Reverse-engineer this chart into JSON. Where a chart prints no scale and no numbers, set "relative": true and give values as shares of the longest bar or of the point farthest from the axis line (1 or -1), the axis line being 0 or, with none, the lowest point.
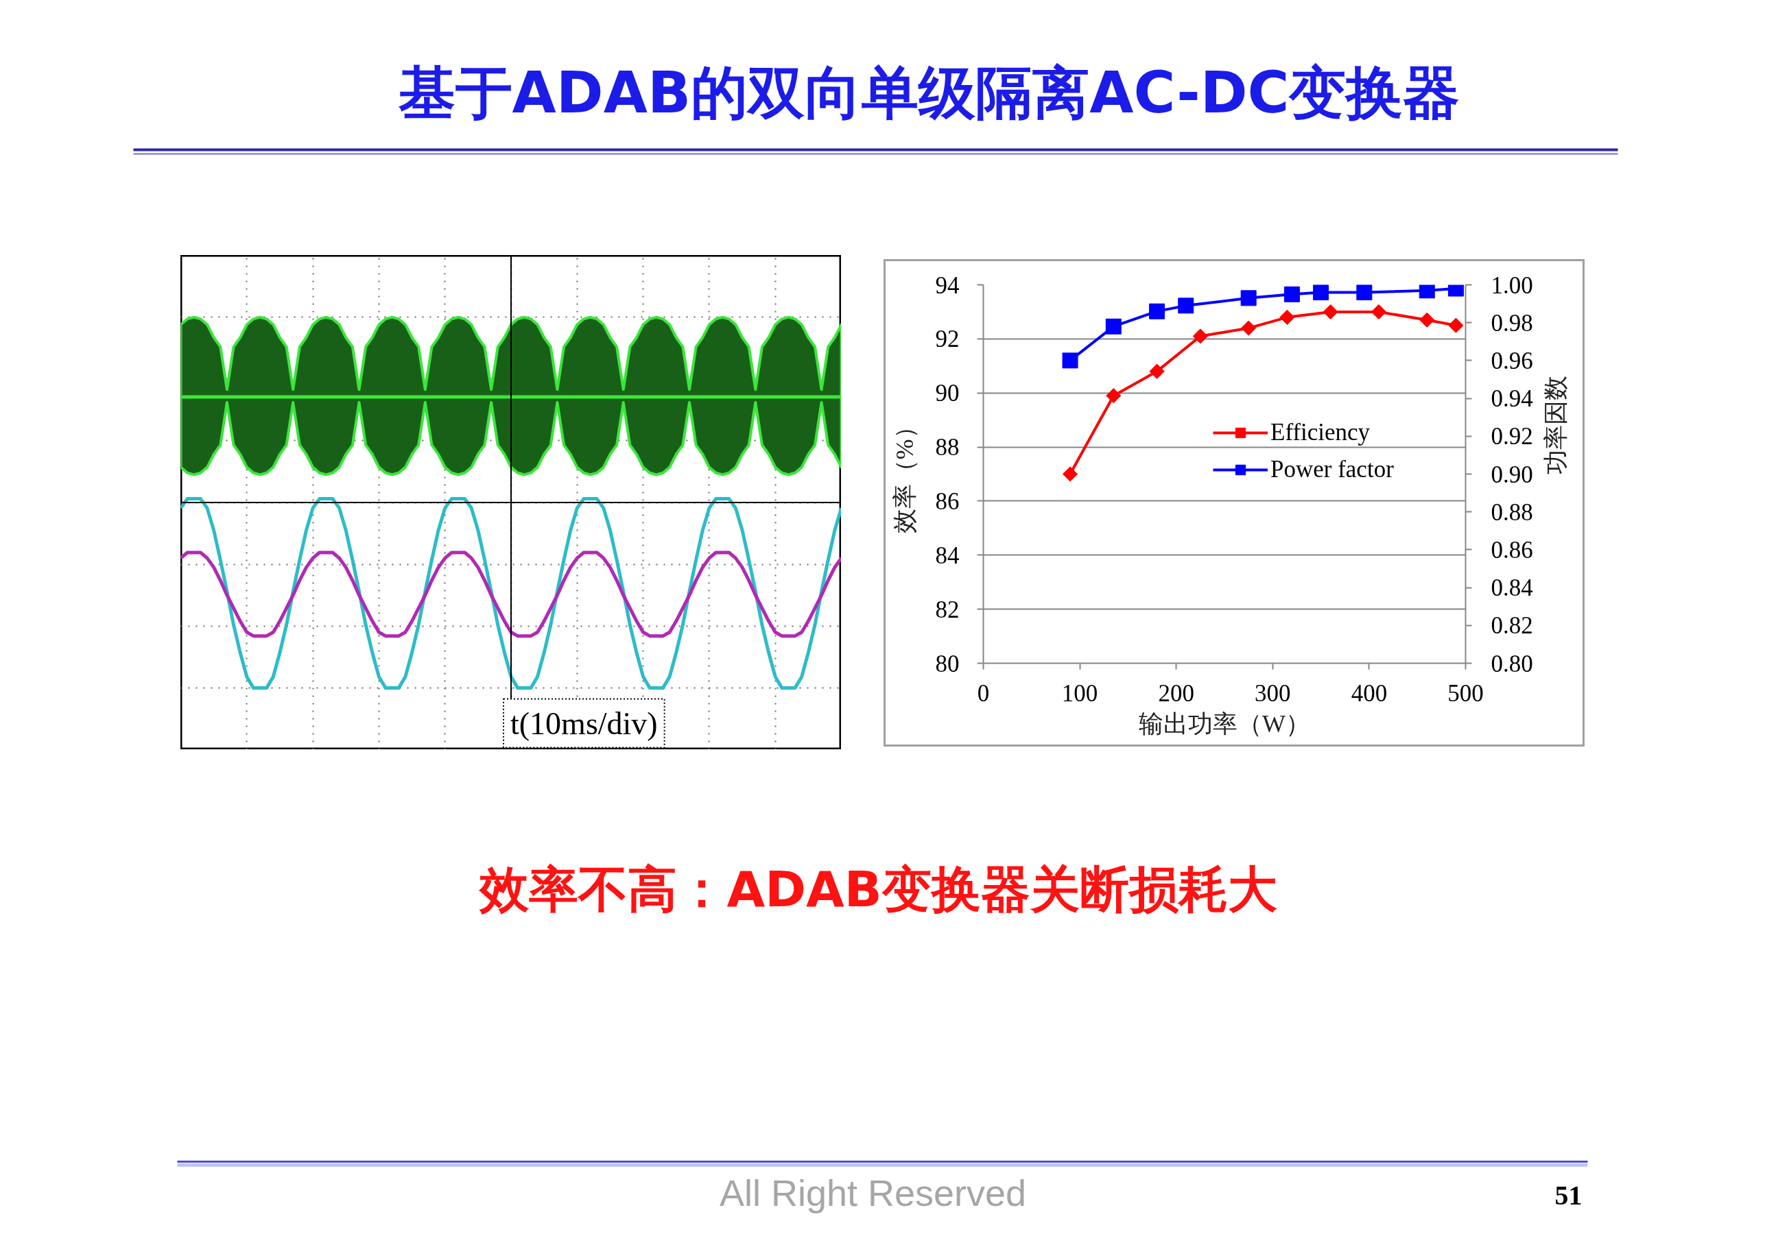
{
  "chart_data": [
    {
      "type": "line",
      "title": "基于ADAB的双向单级隔离AC-DC变换器",
      "relative": true,
      "xlabel": "t(10ms/div)",
      "grid": true,
      "categories": [
        null,
        null,
        null,
        null,
        null,
        null,
        null,
        null,
        null,
        null,
        null,
        null,
        null,
        null,
        null,
        null,
        null,
        null,
        null,
        null,
        null,
        null,
        null,
        null,
        null,
        null,
        null,
        null,
        null,
        null,
        null,
        null,
        null,
        null,
        null,
        null,
        null,
        null,
        null,
        null,
        null,
        null,
        null,
        null,
        null,
        null,
        null,
        null,
        null,
        null,
        null,
        null,
        null,
        null,
        null,
        null,
        null,
        null,
        null,
        null,
        null,
        null,
        null,
        null,
        null,
        null,
        null,
        null,
        null,
        null,
        null,
        null,
        null,
        null,
        null,
        null,
        null,
        null,
        null,
        null,
        null,
        null,
        null,
        null,
        null,
        null,
        null,
        null,
        null,
        null,
        null,
        null,
        null,
        null,
        null,
        null,
        null,
        null,
        null,
        null,
        null
      ],
      "series": [
        {
          "color": "#3ae63a",
          "values": [
            0.57,
            0.57,
            0.57,
            0.57,
            0.57,
            0.57,
            0.57,
            0.57,
            0.57,
            0.57,
            0.57,
            0.57,
            0.57,
            0.57,
            0.57,
            0.57,
            0.57,
            0.57,
            0.57,
            0.57,
            0.57,
            0.57,
            0.57,
            0.57,
            0.57,
            0.57,
            0.57,
            0.57,
            0.57,
            0.57,
            0.57,
            0.57,
            0.57,
            0.57,
            0.57,
            0.57,
            0.57,
            0.57,
            0.57,
            0.57,
            0.57,
            0.57,
            0.57,
            0.57,
            0.57,
            0.57,
            0.57,
            0.57,
            0.57,
            0.57,
            0.57,
            0.57,
            0.57,
            0.57,
            0.57,
            0.57,
            0.57,
            0.57,
            0.57,
            0.57,
            0.57,
            0.57,
            0.57,
            0.57,
            0.57,
            0.57,
            0.57,
            0.57,
            0.57,
            0.57,
            0.57,
            0.57,
            0.57,
            0.57,
            0.57,
            0.57,
            0.57,
            0.57,
            0.57,
            0.57,
            0.57,
            0.57,
            0.57,
            0.57,
            0.57,
            0.57,
            0.57,
            0.57,
            0.57,
            0.57,
            0.57,
            0.57,
            0.57,
            0.57,
            0.57,
            0.57,
            0.57,
            0.57,
            0.57,
            0.57,
            0.57
          ],
          "upper": [
            0.96,
            0.99,
            1.0,
            0.99,
            0.96,
            0.89,
            0.84,
            0.61,
            0.84,
            0.89,
            0.96,
            0.99,
            1.0,
            0.99,
            0.96,
            0.89,
            0.84,
            0.61,
            0.84,
            0.89,
            0.96,
            0.99,
            1.0,
            0.99,
            0.96,
            0.89,
            0.84,
            0.61,
            0.84,
            0.89,
            0.96,
            0.99,
            1.0,
            0.99,
            0.96,
            0.89,
            0.84,
            0.61,
            0.84,
            0.89,
            0.96,
            0.99,
            1.0,
            0.99,
            0.96,
            0.89,
            0.84,
            0.61,
            0.84,
            0.89,
            0.96,
            0.99,
            1.0,
            0.99,
            0.96,
            0.89,
            0.84,
            0.61,
            0.84,
            0.89,
            0.96,
            0.99,
            1.0,
            0.99,
            0.96,
            0.89,
            0.84,
            0.61,
            0.84,
            0.89,
            0.96,
            0.99,
            1.0,
            0.99,
            0.96,
            0.89,
            0.84,
            0.61,
            0.84,
            0.89,
            0.96,
            0.99,
            1.0,
            0.99,
            0.96,
            0.89,
            0.84,
            0.61,
            0.84,
            0.89,
            0.96,
            0.99,
            1.0,
            0.99,
            0.96,
            0.89,
            0.84,
            0.61,
            0.84,
            0.89,
            0.96
          ],
          "lower": [
            0.19,
            0.16,
            0.15,
            0.16,
            0.19,
            0.26,
            0.31,
            0.54,
            0.31,
            0.26,
            0.19,
            0.16,
            0.15,
            0.16,
            0.19,
            0.26,
            0.31,
            0.54,
            0.31,
            0.26,
            0.19,
            0.16,
            0.15,
            0.16,
            0.19,
            0.26,
            0.31,
            0.54,
            0.31,
            0.26,
            0.19,
            0.16,
            0.15,
            0.16,
            0.19,
            0.26,
            0.31,
            0.54,
            0.31,
            0.26,
            0.19,
            0.16,
            0.15,
            0.16,
            0.19,
            0.26,
            0.31,
            0.54,
            0.31,
            0.26,
            0.19,
            0.16,
            0.15,
            0.16,
            0.19,
            0.26,
            0.31,
            0.54,
            0.31,
            0.26,
            0.19,
            0.16,
            0.15,
            0.16,
            0.19,
            0.26,
            0.31,
            0.54,
            0.31,
            0.26,
            0.19,
            0.16,
            0.15,
            0.16,
            0.19,
            0.26,
            0.31,
            0.54,
            0.31,
            0.26,
            0.19,
            0.16,
            0.15,
            0.16,
            0.19,
            0.26,
            0.31,
            0.54,
            0.31,
            0.26,
            0.19,
            0.16,
            0.15,
            0.16,
            0.19,
            0.26,
            0.31,
            0.54,
            0.31,
            0.26,
            0.19
          ]
        },
        {
          "color": "#2cbcc8",
          "values": [
            -0.03,
            0.02,
            0.02,
            0.02,
            -0.03,
            -0.15,
            -0.31,
            -0.48,
            -0.66,
            -0.81,
            -0.94,
            -1.0,
            -1.0,
            -1.0,
            -0.94,
            -0.81,
            -0.66,
            -0.48,
            -0.31,
            -0.15,
            -0.03,
            0.02,
            0.02,
            0.02,
            -0.03,
            -0.15,
            -0.31,
            -0.48,
            -0.66,
            -0.81,
            -0.94,
            -1.0,
            -1.0,
            -1.0,
            -0.94,
            -0.81,
            -0.66,
            -0.48,
            -0.31,
            -0.15,
            -0.03,
            0.02,
            0.02,
            0.02,
            -0.03,
            -0.15,
            -0.31,
            -0.48,
            -0.66,
            -0.81,
            -0.94,
            -1.0,
            -1.0,
            -1.0,
            -0.94,
            -0.81,
            -0.66,
            -0.48,
            -0.31,
            -0.15,
            -0.03,
            0.02,
            0.02,
            0.02,
            -0.03,
            -0.15,
            -0.31,
            -0.48,
            -0.66,
            -0.81,
            -0.94,
            -1.0,
            -1.0,
            -1.0,
            -0.94,
            -0.81,
            -0.66,
            -0.48,
            -0.31,
            -0.15,
            -0.03,
            0.02,
            0.02,
            0.02,
            -0.03,
            -0.15,
            -0.31,
            -0.48,
            -0.66,
            -0.81,
            -0.94,
            -1.0,
            -1.0,
            -1.0,
            -0.94,
            -0.81,
            -0.66,
            -0.48,
            -0.31,
            -0.15,
            -0.03
          ]
        },
        {
          "color": "#b02ab4",
          "values": [
            -0.3,
            -0.27,
            -0.27,
            -0.27,
            -0.3,
            -0.35,
            -0.42,
            -0.5,
            -0.57,
            -0.64,
            -0.7,
            -0.72,
            -0.72,
            -0.72,
            -0.7,
            -0.64,
            -0.57,
            -0.5,
            -0.42,
            -0.35,
            -0.3,
            -0.27,
            -0.27,
            -0.27,
            -0.3,
            -0.35,
            -0.42,
            -0.5,
            -0.57,
            -0.64,
            -0.7,
            -0.72,
            -0.72,
            -0.72,
            -0.7,
            -0.64,
            -0.57,
            -0.5,
            -0.42,
            -0.35,
            -0.3,
            -0.27,
            -0.27,
            -0.27,
            -0.3,
            -0.35,
            -0.42,
            -0.5,
            -0.57,
            -0.64,
            -0.7,
            -0.72,
            -0.72,
            -0.72,
            -0.7,
            -0.64,
            -0.57,
            -0.5,
            -0.42,
            -0.35,
            -0.3,
            -0.27,
            -0.27,
            -0.27,
            -0.3,
            -0.35,
            -0.42,
            -0.5,
            -0.57,
            -0.64,
            -0.7,
            -0.72,
            -0.72,
            -0.72,
            -0.7,
            -0.64,
            -0.57,
            -0.5,
            -0.42,
            -0.35,
            -0.3,
            -0.27,
            -0.27,
            -0.27,
            -0.3,
            -0.35,
            -0.42,
            -0.5,
            -0.57,
            -0.64,
            -0.7,
            -0.72,
            -0.72,
            -0.72,
            -0.7,
            -0.64,
            -0.57,
            -0.5,
            -0.42,
            -0.35,
            -0.3
          ]
        }
      ]
    },
    {
      "type": "line",
      "xlabel": "输出功率（W）",
      "ylabel": "效率（%）",
      "y2label": "功率因数",
      "xlim": [
        0,
        500
      ],
      "xticks": [
        0,
        100,
        200,
        300,
        400,
        500
      ],
      "ylim": [
        80,
        94
      ],
      "yticks": [
        80,
        82,
        84,
        86,
        88,
        90,
        92,
        94
      ],
      "y2lim": [
        0.8,
        1.0
      ],
      "y2ticks": [
        {
          "value": 0.8,
          "label": "0.80"
        },
        {
          "value": 0.82,
          "label": "0.82"
        },
        {
          "value": 0.84,
          "label": "0.84"
        },
        {
          "value": 0.86,
          "label": "0.86"
        },
        {
          "value": 0.88,
          "label": "0.88"
        },
        {
          "value": 0.9,
          "label": "0.90"
        },
        {
          "value": 0.92,
          "label": "0.92"
        },
        {
          "value": 0.94,
          "label": "0.94"
        },
        {
          "value": 0.96,
          "label": "0.96"
        },
        {
          "value": 0.98,
          "label": "0.98"
        },
        {
          "value": 1.0,
          "label": "1.00"
        }
      ],
      "grid": "y",
      "legend": "center",
      "series": [
        {
          "name": "Efficiency",
          "color": "#ff0000",
          "marker": "diamond",
          "x": [
            90,
            135,
            180,
            225,
            275,
            315,
            360,
            410,
            460,
            490
          ],
          "values": [
            87.0,
            89.9,
            90.8,
            92.1,
            92.4,
            92.8,
            93.0,
            93.0,
            92.7,
            92.5
          ]
        },
        {
          "name": "Power factor",
          "color": "#0000ff",
          "marker": "square",
          "axis": "y2",
          "x": [
            90,
            135,
            180,
            210,
            275,
            320,
            350,
            395,
            460,
            490
          ],
          "values": [
            0.96,
            0.978,
            0.986,
            0.989,
            0.993,
            0.995,
            0.996,
            0.996,
            0.997,
            0.998
          ]
        }
      ],
      "annotations": [
        "效率不高：ADAB变换器关断损耗大",
        "All Right Reserved",
        "51"
      ]
    }
  ]
}
